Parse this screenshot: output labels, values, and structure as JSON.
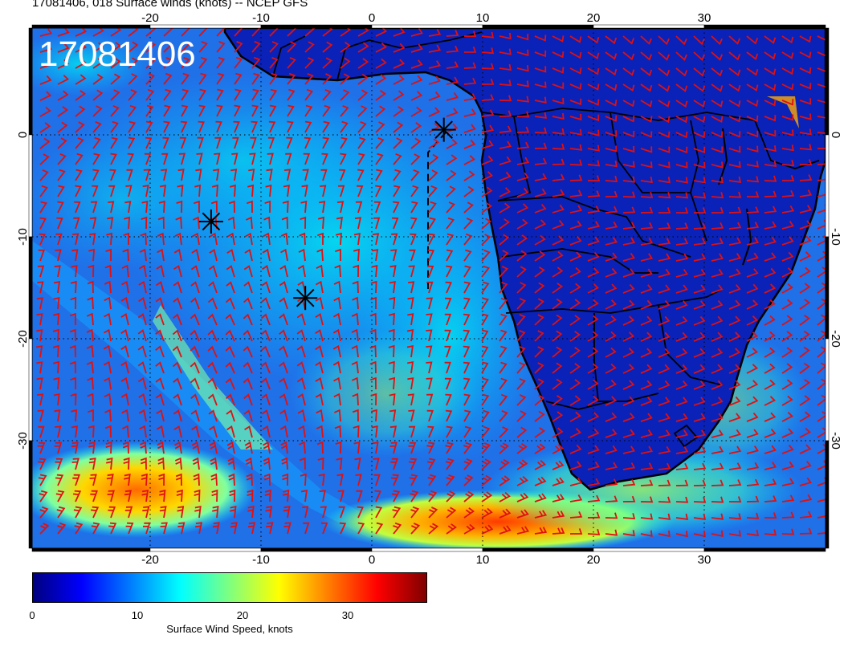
{
  "title": "17081406, 018 Surface winds (knots) -- NCEP GFS",
  "stamp": "17081406",
  "axes": {
    "x_ticks": [
      "-20",
      "-10",
      "0",
      "10",
      "20",
      "30"
    ],
    "y_ticks": [
      "0",
      "-10",
      "-20",
      "-30"
    ]
  },
  "colorbar": {
    "label": "Surface Wind Speed, knots",
    "ticks": [
      "0",
      "10",
      "20",
      "30"
    ],
    "colors": [
      "#00007f",
      "#0000ff",
      "#007fff",
      "#00ffff",
      "#7fff7f",
      "#ffff00",
      "#ff7f00",
      "#ff0000",
      "#7f0000"
    ]
  },
  "colors": {
    "ocean_base": "#1e64e6",
    "land_base": "#0a1fb4",
    "barb": "#e01010",
    "coast": "#000000"
  },
  "markers": [
    {
      "name": "asterisk-1",
      "lon": 6.5,
      "lat": 0.5
    },
    {
      "name": "asterisk-2",
      "lon": -14.5,
      "lat": -8.5
    },
    {
      "name": "asterisk-3",
      "lon": -6,
      "lat": -16
    }
  ]
}
